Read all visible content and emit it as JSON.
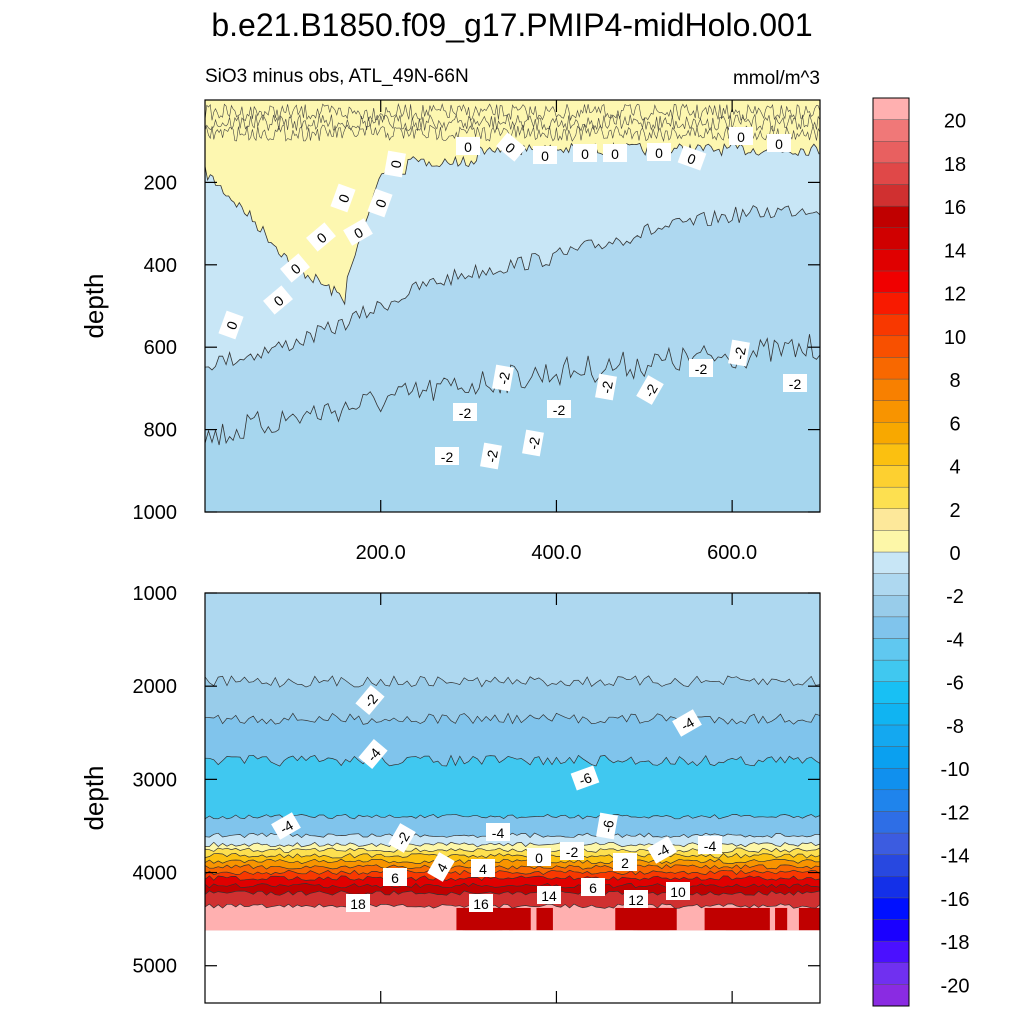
{
  "chart_data": {
    "type": "heatmap",
    "title": "b.e21.B1850.f09_g17.PMIP4-midHolo.001",
    "subtitle": "SiO3 minus obs, ATL_49N-66N",
    "units": "mmol/m^3",
    "xlim": [
      0,
      700
    ],
    "x_ticklabels": [
      "200.0",
      "400.0",
      "600.0"
    ],
    "x_ticks": [
      200,
      400,
      600
    ],
    "panels": [
      {
        "name": "upper",
        "ylabel": "depth",
        "ylim": [
          1000,
          0
        ],
        "y_ticks": [
          200,
          400,
          600,
          800,
          1000
        ],
        "y_ticklabels": [
          "200",
          "400",
          "600",
          "800",
          "1000"
        ],
        "profiles": {
          "zero_contour": [
            [
              0,
              175
            ],
            [
              50,
              280
            ],
            [
              100,
              400
            ],
            [
              150,
              470
            ],
            [
              200,
              540
            ],
            [
              230,
              560
            ],
            [
              260,
              590
            ],
            [
              310,
              660
            ]
          ],
          "minus1_contour": [
            [
              0,
              520
            ],
            [
              50,
              500
            ],
            [
              100,
              470
            ],
            [
              150,
              430
            ],
            [
              200,
              380
            ],
            [
              250,
              330
            ],
            [
              300,
              300
            ],
            [
              350,
              280
            ],
            [
              400,
              260
            ],
            [
              450,
              230
            ],
            [
              500,
              200
            ],
            [
              550,
              180
            ],
            [
              600,
              160
            ],
            [
              650,
              150
            ],
            [
              700,
              140
            ]
          ],
          "minus2_contour": [
            [
              0,
              650
            ],
            [
              100,
              600
            ],
            [
              200,
              560
            ],
            [
              300,
              520
            ],
            [
              400,
              490
            ],
            [
              500,
              470
            ],
            [
              600,
              450
            ],
            [
              700,
              430
            ]
          ]
        },
        "contour_labels": [
          "0",
          "0",
          "0",
          "0",
          "0",
          "0",
          "0",
          "0",
          "0",
          "0",
          "0",
          "0",
          "0",
          "0",
          "0",
          "0",
          "0",
          "-2",
          "-2",
          "-2",
          "-2",
          "-2",
          "-2",
          "-2",
          "-2",
          "-2",
          "-2",
          "-2",
          "-2"
        ]
      },
      {
        "name": "lower",
        "ylabel": "depth",
        "ylim": [
          5400,
          1000
        ],
        "y_ticks": [
          1000,
          2000,
          3000,
          4000,
          5000
        ],
        "y_ticklabels": [
          "1000",
          "2000",
          "3000",
          "4000",
          "5000"
        ],
        "bottom_depth": 4620,
        "contour_labels": [
          "-2",
          "-4",
          "-4",
          "-6",
          "-4",
          "-6",
          "-4",
          "-2",
          "-4",
          "0",
          "-2",
          "2",
          "-4",
          "6",
          "4",
          "4",
          "14",
          "6",
          "12",
          "10",
          "18",
          "16"
        ]
      }
    ],
    "colorbar": {
      "levels": [
        -21,
        -20,
        -19,
        -18,
        -17,
        -16,
        -15,
        -14,
        -13,
        -12,
        -11,
        -10,
        -9,
        -8,
        -7,
        -6,
        -5,
        -4,
        -3,
        -2,
        -1,
        0,
        1,
        2,
        3,
        4,
        5,
        6,
        7,
        8,
        9,
        10,
        11,
        12,
        13,
        14,
        15,
        16,
        17,
        18,
        19,
        20,
        21
      ],
      "colors": [
        "#8a2be2",
        "#7030f0",
        "#4b10ff",
        "#1a00ff",
        "#0010ff",
        "#1430e8",
        "#2848e0",
        "#3c5ce0",
        "#2e6ee6",
        "#1f84ec",
        "#1090ee",
        "#0aa0f0",
        "#14a8f0",
        "#10b4f2",
        "#18c0f4",
        "#40c8f0",
        "#60c8f0",
        "#80c4ec",
        "#98ccea",
        "#aed8f0",
        "#c8e6f6",
        "#fdf7a8",
        "#fde89a",
        "#fde050",
        "#fdd030",
        "#fbc010",
        "#f8a800",
        "#f89400",
        "#f88000",
        "#f86800",
        "#f85000",
        "#f83800",
        "#f81a00",
        "#f00000",
        "#e00000",
        "#d00000",
        "#c00000",
        "#d03030",
        "#e04848",
        "#e86060",
        "#f07878",
        "#ffb0b0"
      ],
      "ticks": [
        "20",
        "18",
        "16",
        "14",
        "12",
        "10",
        "8",
        "6",
        "4",
        "2",
        "0",
        "-2",
        "-4",
        "-6",
        "-8",
        "-10",
        "-12",
        "-14",
        "-16",
        "-18",
        "-20"
      ]
    }
  }
}
